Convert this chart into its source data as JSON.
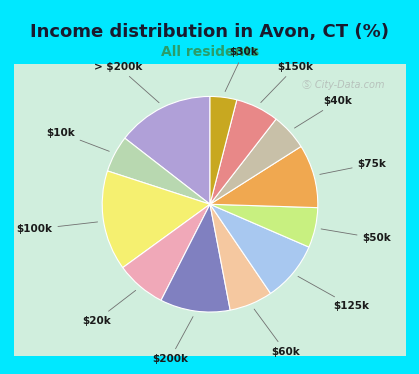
{
  "title": "Income distribution in Avon, CT (%)",
  "subtitle": "All residents",
  "watermark": "Ⓢ City-Data.com",
  "labels": [
    "> $200k",
    "$10k",
    "$100k",
    "$20k",
    "$200k",
    "$60k",
    "$125k",
    "$50k",
    "$75k",
    "$40k",
    "$150k",
    "$30k"
  ],
  "values": [
    14.5,
    5.5,
    15.0,
    7.5,
    10.5,
    6.5,
    9.0,
    6.0,
    9.5,
    5.5,
    6.5,
    4.0
  ],
  "colors": [
    "#b0a0d8",
    "#b8d8b0",
    "#f5f070",
    "#f0a8b8",
    "#8080c0",
    "#f5c8a0",
    "#a8c8f0",
    "#c8f080",
    "#f0a850",
    "#c8c0a8",
    "#e88888",
    "#c8a820"
  ],
  "bg_color_outer": "#00e8ff",
  "bg_color_inner": "#d0eedd",
  "title_color": "#1a1a2e",
  "subtitle_color": "#2a9d6a",
  "label_fontsize": 7.5,
  "title_fontsize": 13,
  "subtitle_fontsize": 10,
  "startangle": 90
}
